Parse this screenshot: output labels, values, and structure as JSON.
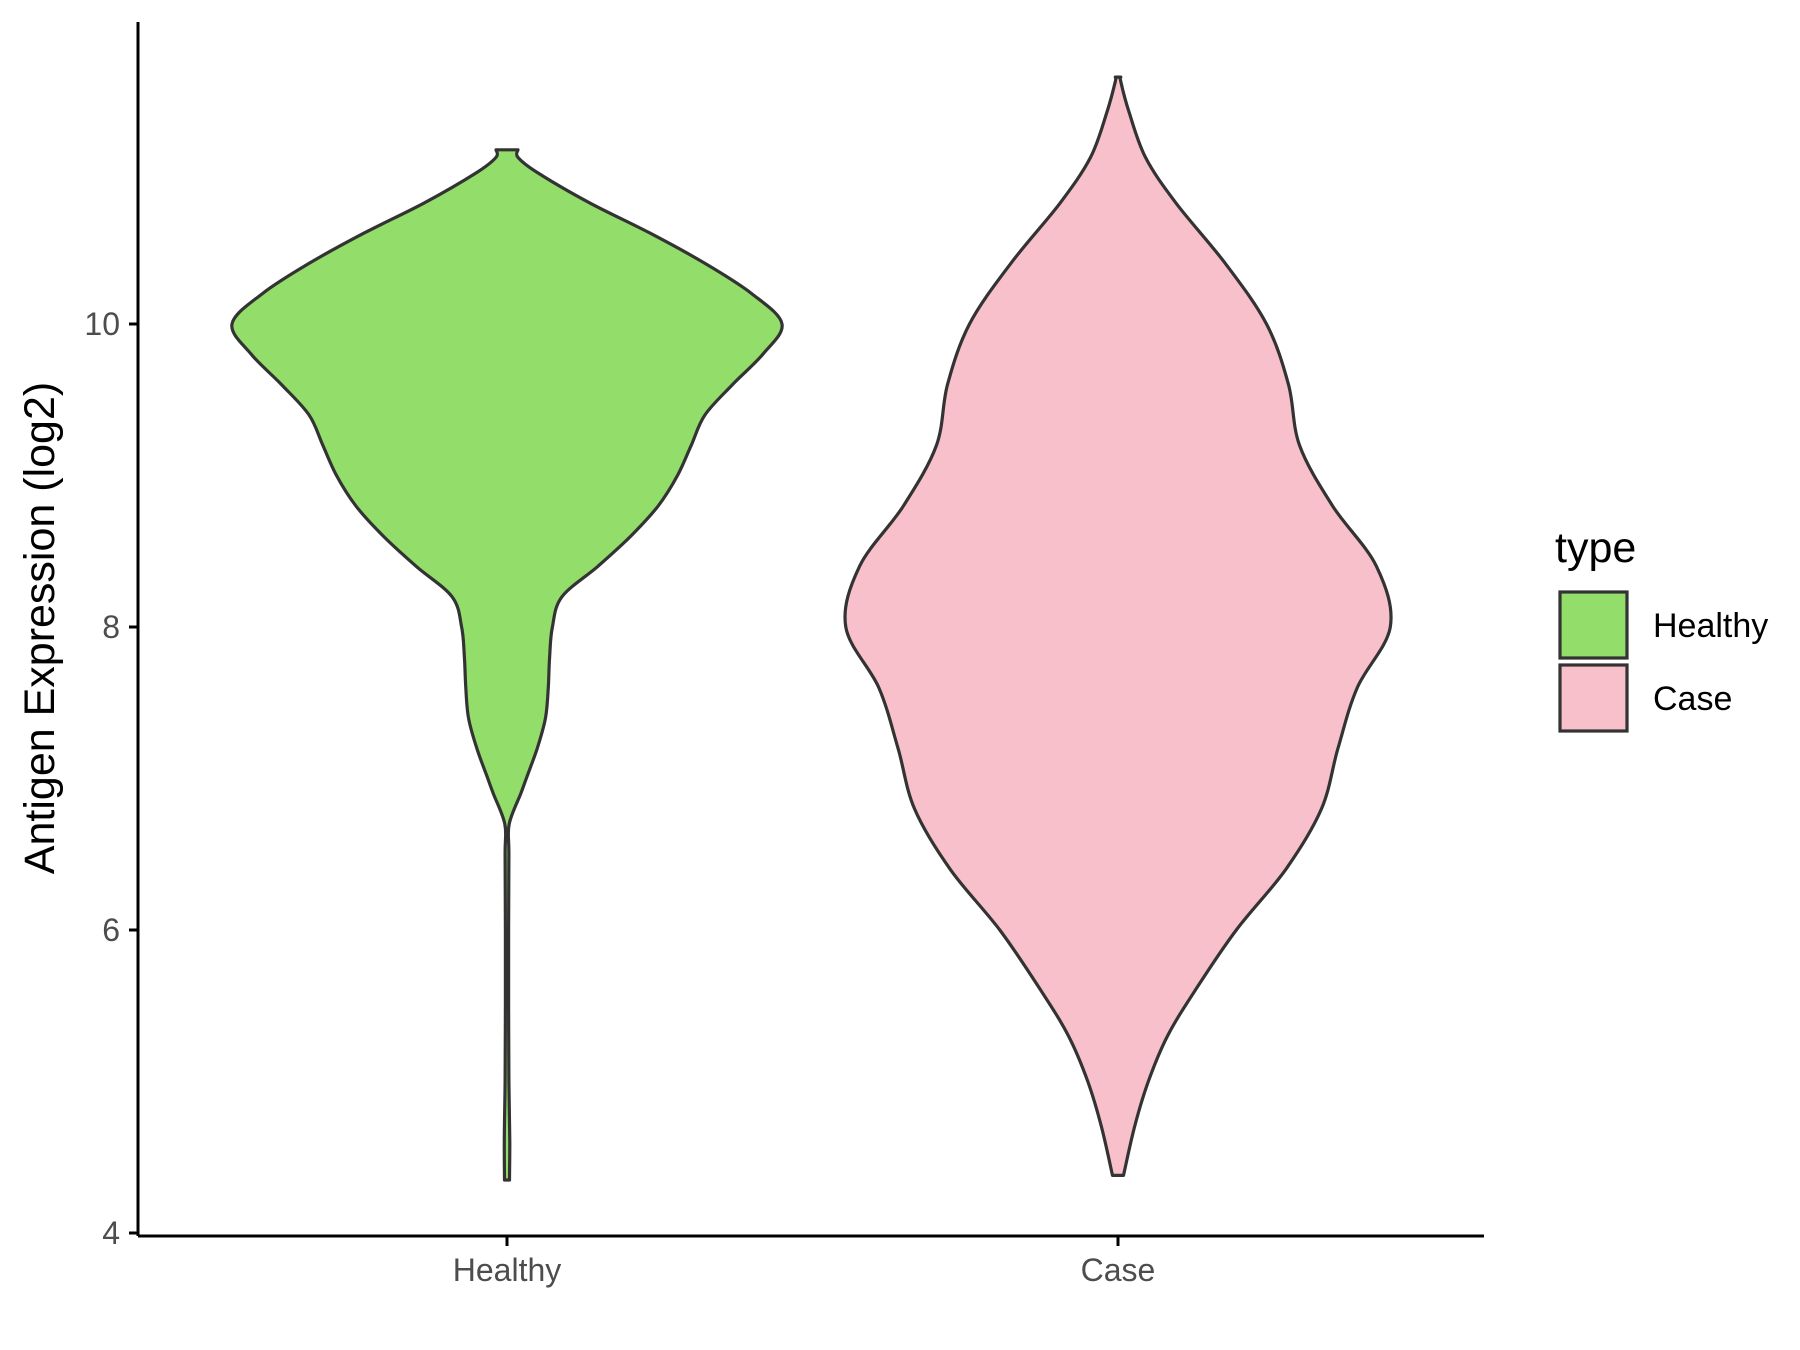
{
  "chart_data": {
    "type": "violin",
    "ylabel": "Antigen Expression (log2)",
    "xlabel": "",
    "ylim": [
      4,
      12
    ],
    "yticks": [
      4,
      6,
      8,
      10
    ],
    "categories": [
      "Healthy",
      "Case"
    ],
    "grid": false,
    "legend": {
      "title": "type",
      "placement": "right",
      "entries": [
        {
          "label": "Healthy",
          "color": "#93DD6A"
        },
        {
          "label": "Case",
          "color": "#F7C0CB"
        }
      ]
    },
    "series": [
      {
        "name": "Healthy",
        "color": "#93DD6A",
        "range": [
          4.35,
          11.15
        ],
        "density_profile": [
          [
            4.35,
            0.009
          ],
          [
            4.6,
            0.01
          ],
          [
            5.0,
            0.007
          ],
          [
            5.5,
            0.006
          ],
          [
            6.0,
            0.006
          ],
          [
            6.5,
            0.007
          ],
          [
            6.7,
            0.008
          ],
          [
            6.9,
            0.05
          ],
          [
            7.0,
            0.07
          ],
          [
            7.2,
            0.11
          ],
          [
            7.4,
            0.14
          ],
          [
            7.6,
            0.15
          ],
          [
            7.8,
            0.155
          ],
          [
            8.0,
            0.165
          ],
          [
            8.2,
            0.2
          ],
          [
            8.4,
            0.33
          ],
          [
            8.6,
            0.45
          ],
          [
            8.8,
            0.55
          ],
          [
            9.0,
            0.62
          ],
          [
            9.2,
            0.67
          ],
          [
            9.4,
            0.72
          ],
          [
            9.6,
            0.82
          ],
          [
            9.8,
            0.93
          ],
          [
            10.0,
            1.0
          ],
          [
            10.2,
            0.89
          ],
          [
            10.4,
            0.72
          ],
          [
            10.6,
            0.52
          ],
          [
            10.8,
            0.3
          ],
          [
            11.0,
            0.11
          ],
          [
            11.1,
            0.04
          ],
          [
            11.15,
            0.04
          ]
        ]
      },
      {
        "name": "Case",
        "color": "#F7C0CB",
        "range": [
          4.38,
          11.63
        ],
        "density_profile": [
          [
            4.38,
            0.02
          ],
          [
            4.7,
            0.06
          ],
          [
            5.0,
            0.11
          ],
          [
            5.3,
            0.18
          ],
          [
            5.6,
            0.28
          ],
          [
            6.0,
            0.43
          ],
          [
            6.4,
            0.61
          ],
          [
            6.8,
            0.74
          ],
          [
            7.2,
            0.8
          ],
          [
            7.6,
            0.87
          ],
          [
            8.0,
            0.99
          ],
          [
            8.4,
            0.94
          ],
          [
            8.8,
            0.78
          ],
          [
            9.2,
            0.66
          ],
          [
            9.6,
            0.62
          ],
          [
            10.0,
            0.54
          ],
          [
            10.4,
            0.39
          ],
          [
            10.8,
            0.21
          ],
          [
            11.1,
            0.1
          ],
          [
            11.4,
            0.04
          ],
          [
            11.6,
            0.01
          ],
          [
            11.63,
            0.01
          ]
        ]
      }
    ]
  }
}
